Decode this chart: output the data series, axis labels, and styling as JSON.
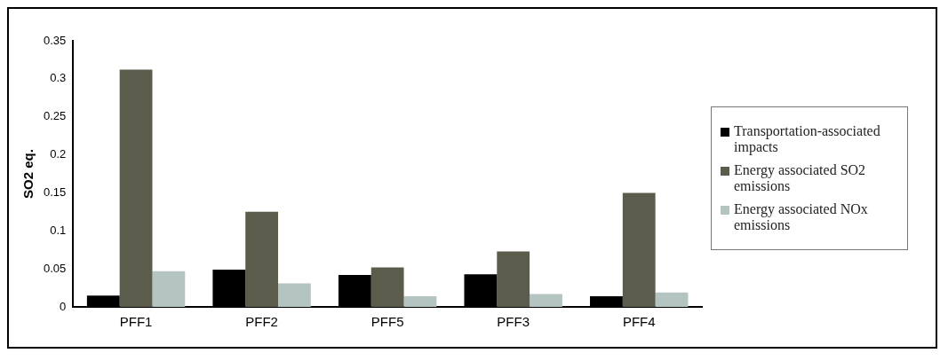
{
  "chart_data": {
    "type": "bar",
    "ylabel": "SO2 eq.",
    "categories": [
      "PFF1",
      "PFF2",
      "PFF5",
      "PFF3",
      "PFF4"
    ],
    "series": [
      {
        "name": "Transportation-associated impacts",
        "color": "#000000",
        "values": [
          0.015,
          0.049,
          0.042,
          0.043,
          0.014
        ]
      },
      {
        "name": "Energy associated SO2 emissions",
        "color": "#5c5c4c",
        "values": [
          0.312,
          0.125,
          0.052,
          0.073,
          0.15
        ]
      },
      {
        "name": "Energy associated NOx emissions",
        "color": "#b4c4c0",
        "values": [
          0.047,
          0.031,
          0.014,
          0.017,
          0.019
        ]
      }
    ],
    "ylim": [
      0,
      0.35
    ],
    "yticks": [
      0,
      0.05,
      0.1,
      0.15,
      0.2,
      0.25,
      0.3,
      0.35
    ],
    "grid": false,
    "legend": "right"
  }
}
